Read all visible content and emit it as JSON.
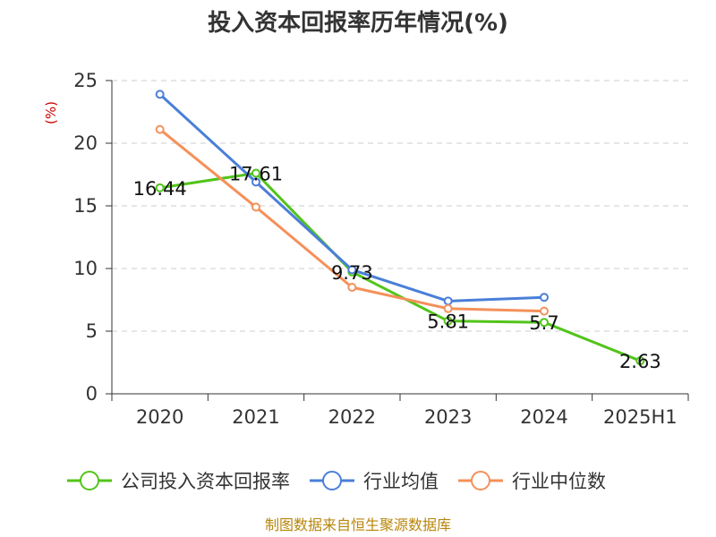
{
  "chart_data": {
    "type": "line",
    "title": "投入资本回报率历年情况(%)",
    "ylabel": "(%)",
    "xlabel": "",
    "categories": [
      "2020",
      "2021",
      "2022",
      "2023",
      "2024",
      "2025H1"
    ],
    "ylim": [
      0,
      25
    ],
    "yticks": [
      0,
      5,
      10,
      15,
      20,
      25
    ],
    "grid": true,
    "legend_position": "bottom",
    "series": [
      {
        "name": "公司投入资本回报率",
        "color": "#52c41a",
        "values": [
          16.44,
          17.61,
          9.73,
          5.81,
          5.7,
          2.63
        ],
        "labels": [
          "16.44",
          "17.61",
          "9.73",
          "5.81",
          "5.7",
          "2.63"
        ]
      },
      {
        "name": "行业均值",
        "color": "#4a7fd8",
        "values": [
          23.9,
          16.9,
          9.9,
          7.4,
          7.7,
          null
        ]
      },
      {
        "name": "行业中位数",
        "color": "#f5905a",
        "values": [
          21.1,
          14.9,
          8.5,
          6.8,
          6.6,
          null
        ]
      }
    ]
  },
  "source": "制图数据来自恒生聚源数据库"
}
